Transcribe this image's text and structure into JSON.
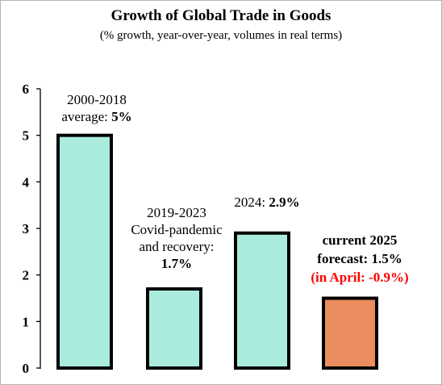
{
  "colors": {
    "bar_default": "#a9ebdd",
    "bar_forecast": "#eb8d5e",
    "bar_outline": "#000000",
    "highlight_text": "#ff0000"
  },
  "chart_data": {
    "type": "bar",
    "title": "Growth of Global Trade in Goods",
    "subtitle": "(% growth, year-over-year, volumes in real terms)",
    "ylim": [
      0,
      6
    ],
    "yticks": [
      0,
      1,
      2,
      3,
      4,
      5,
      6
    ],
    "grid": false,
    "categories": [
      "2000-2018 average",
      "2019-2023 Covid-pandemic and recovery",
      "2024",
      "current 2025 forecast"
    ],
    "values": [
      5.0,
      1.7,
      2.9,
      1.5
    ],
    "bar_colors": [
      "#a9ebdd",
      "#a9ebdd",
      "#a9ebdd",
      "#eb8d5e"
    ],
    "annotations": [
      {
        "lines": [
          [
            {
              "text": "2000-2018"
            }
          ],
          [
            {
              "text": "average:  "
            },
            {
              "text": "5%",
              "style": "b"
            }
          ]
        ]
      },
      {
        "lines": [
          [
            {
              "text": "2019-2023"
            }
          ],
          [
            {
              "text": "Covid-pandemic"
            }
          ],
          [
            {
              "text": "and recovery:"
            }
          ],
          [
            {
              "text": "1.7%",
              "style": "b"
            }
          ]
        ]
      },
      {
        "lines": [
          [
            {
              "text": "2024: "
            },
            {
              "text": "2.9%",
              "style": "b"
            }
          ]
        ]
      },
      {
        "lines": [
          [
            {
              "text": "current 2025",
              "style": "b"
            }
          ],
          [
            {
              "text": "forecast: 1.5%",
              "style": "b"
            }
          ],
          [
            {
              "text": "(in April: -0.9%)",
              "style": "red"
            }
          ]
        ]
      }
    ]
  }
}
